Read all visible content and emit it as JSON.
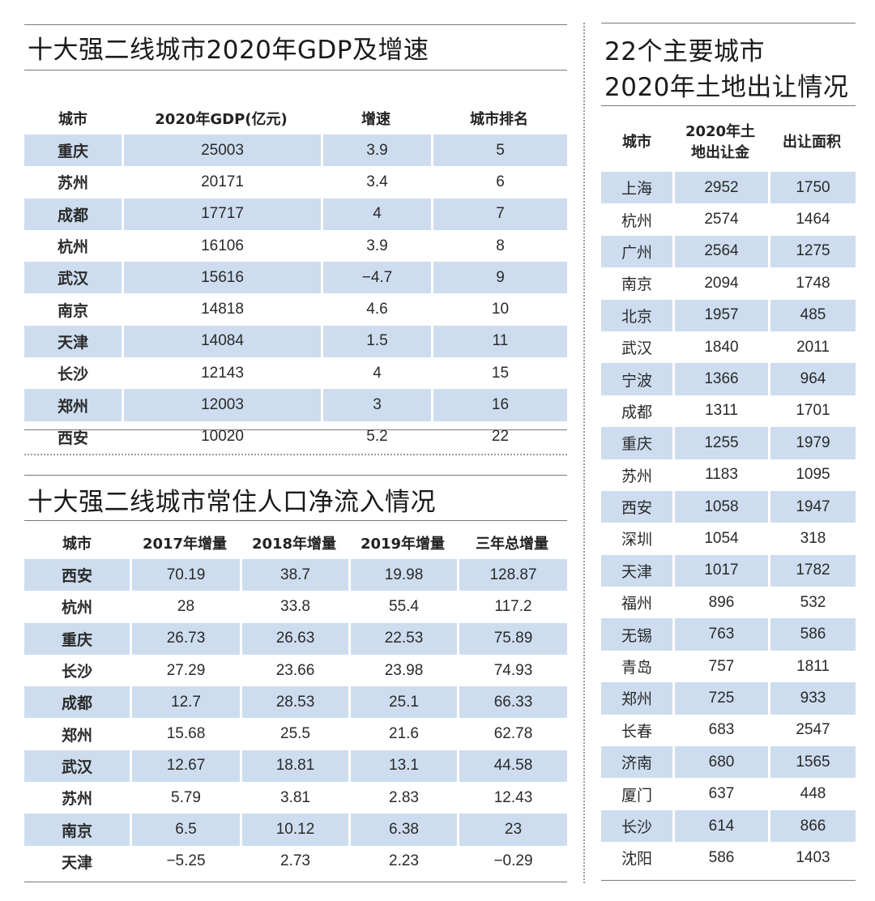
{
  "gdp_table": {
    "title": "十大强二线城市2020年GDP及增速",
    "headers": [
      "城市",
      "2020年GDP(亿元)",
      "增速",
      "城市排名"
    ],
    "rows": [
      [
        "重庆",
        "25003",
        "3.9",
        "5"
      ],
      [
        "苏州",
        "20171",
        "3.4",
        "6"
      ],
      [
        "成都",
        "17717",
        "4",
        "7"
      ],
      [
        "杭州",
        "16106",
        "3.9",
        "8"
      ],
      [
        "武汉",
        "15616",
        "−4.7",
        "9"
      ],
      [
        "南京",
        "14818",
        "4.6",
        "10"
      ],
      [
        "天津",
        "14084",
        "1.5",
        "11"
      ],
      [
        "长沙",
        "12143",
        "4",
        "15"
      ],
      [
        "郑州",
        "12003",
        "3",
        "16"
      ],
      [
        "西安",
        "10020",
        "5.2",
        "22"
      ]
    ]
  },
  "population_table": {
    "title": "十大强二线城市常住人口净流入情况",
    "headers": [
      "城市",
      "2017年增量",
      "2018年增量",
      "2019年增量",
      "三年总增量"
    ],
    "rows": [
      [
        "西安",
        "70.19",
        "38.7",
        "19.98",
        "128.87"
      ],
      [
        "杭州",
        "28",
        "33.8",
        "55.4",
        "117.2"
      ],
      [
        "重庆",
        "26.73",
        "26.63",
        "22.53",
        "75.89"
      ],
      [
        "长沙",
        "27.29",
        "23.66",
        "23.98",
        "74.93"
      ],
      [
        "成都",
        "12.7",
        "28.53",
        "25.1",
        "66.33"
      ],
      [
        "郑州",
        "15.68",
        "25.5",
        "21.6",
        "62.78"
      ],
      [
        "武汉",
        "12.67",
        "18.81",
        "13.1",
        "44.58"
      ],
      [
        "苏州",
        "5.79",
        "3.81",
        "2.83",
        "12.43"
      ],
      [
        "南京",
        "6.5",
        "10.12",
        "6.38",
        "23"
      ],
      [
        "天津",
        "−5.25",
        "2.73",
        "2.23",
        "−0.29"
      ]
    ]
  },
  "land_table": {
    "title_line1": "22个主要城市",
    "title_line2": "2020年土地出让情况",
    "headers": [
      "城市",
      "2020年土地出让金",
      "出让面积"
    ],
    "headers_display": [
      "城市",
      "2020年土\n地出让金",
      "出让面积"
    ],
    "rows": [
      [
        "上海",
        "2952",
        "1750"
      ],
      [
        "杭州",
        "2574",
        "1464"
      ],
      [
        "广州",
        "2564",
        "1275"
      ],
      [
        "南京",
        "2094",
        "1748"
      ],
      [
        "北京",
        "1957",
        "485"
      ],
      [
        "武汉",
        "1840",
        "2011"
      ],
      [
        "宁波",
        "1366",
        "964"
      ],
      [
        "成都",
        "1311",
        "1701"
      ],
      [
        "重庆",
        "1255",
        "1979"
      ],
      [
        "苏州",
        "1183",
        "1095"
      ],
      [
        "西安",
        "1058",
        "1947"
      ],
      [
        "深圳",
        "1054",
        "318"
      ],
      [
        "天津",
        "1017",
        "1782"
      ],
      [
        "福州",
        "896",
        "532"
      ],
      [
        "无锡",
        "763",
        "586"
      ],
      [
        "青岛",
        "757",
        "1811"
      ],
      [
        "郑州",
        "725",
        "933"
      ],
      [
        "长春",
        "683",
        "2547"
      ],
      [
        "济南",
        "680",
        "1565"
      ],
      [
        "厦门",
        "637",
        "448"
      ],
      [
        "长沙",
        "614",
        "866"
      ],
      [
        "沈阳",
        "586",
        "1403"
      ]
    ]
  },
  "colors": {
    "row_shade": "#cdddef",
    "rule": "#7a7a7a",
    "text": "#1a1a1a"
  }
}
